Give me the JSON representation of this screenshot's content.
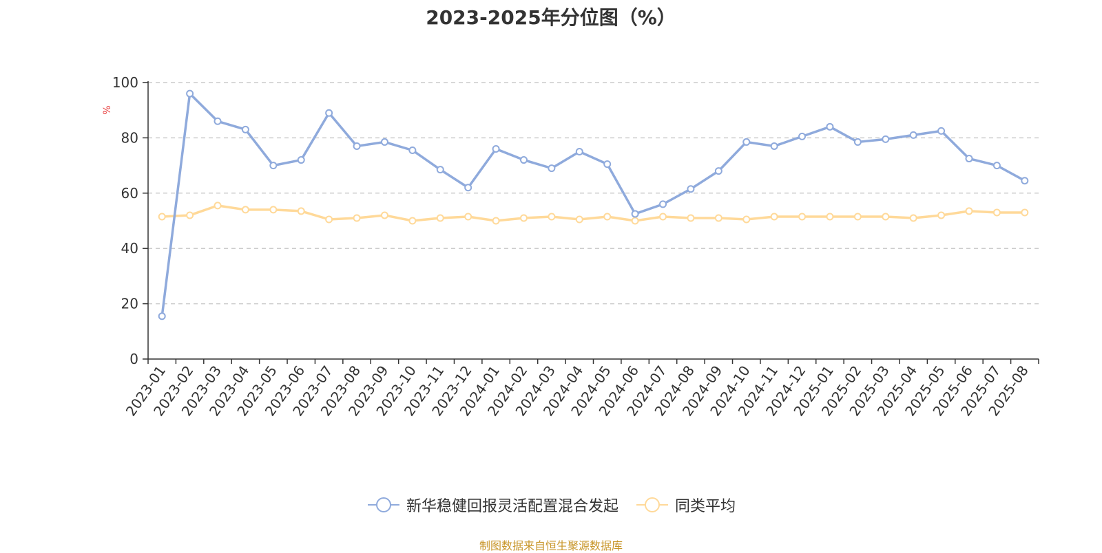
{
  "title": "2023-2025年分位图（%）",
  "source_text": "制图数据来自恒生聚源数据库",
  "colors": {
    "series1": "#8faadc",
    "series2": "#ffd999",
    "unit": "#e83b3b",
    "source": "#c8962a",
    "grid": "#cccccc",
    "axis": "#333333"
  },
  "chart_data": {
    "type": "line",
    "title": "2023-2025年分位图（%）",
    "xlabel": "",
    "ylabel": "%",
    "ylim": [
      0,
      100
    ],
    "yticks": [
      0,
      20,
      40,
      60,
      80,
      100
    ],
    "grid": "horizontal dashed",
    "legend_position": "bottom-center",
    "categories": [
      "2023-01",
      "2023-02",
      "2023-03",
      "2023-04",
      "2023-05",
      "2023-06",
      "2023-07",
      "2023-08",
      "2023-09",
      "2023-10",
      "2023-11",
      "2023-12",
      "2024-01",
      "2024-02",
      "2024-03",
      "2024-04",
      "2024-05",
      "2024-06",
      "2024-07",
      "2024-08",
      "2024-09",
      "2024-10",
      "2024-11",
      "2024-12",
      "2025-01",
      "2025-02",
      "2025-03",
      "2025-04",
      "2025-05",
      "2025-06",
      "2025-07",
      "2025-08"
    ],
    "series": [
      {
        "name": "新华稳健回报灵活配置混合发起",
        "values": [
          15.5,
          96,
          86,
          83,
          70,
          72,
          89,
          77,
          78.5,
          75.5,
          68.5,
          62,
          76,
          72,
          69,
          75,
          70.5,
          52.5,
          56,
          61.5,
          68,
          78.5,
          77,
          80.5,
          84,
          78.5,
          79.5,
          81,
          82.5,
          72.5,
          70,
          64.5
        ]
      },
      {
        "name": "同类平均",
        "values": [
          51.5,
          52,
          55.5,
          54,
          54,
          53.5,
          50.5,
          51,
          52,
          50,
          51,
          51.5,
          50,
          51,
          51.5,
          50.5,
          51.5,
          50,
          51.5,
          51,
          51,
          50.5,
          51.5,
          51.5,
          51.5,
          51.5,
          51.5,
          51,
          52,
          53.5,
          53,
          53
        ]
      }
    ]
  }
}
